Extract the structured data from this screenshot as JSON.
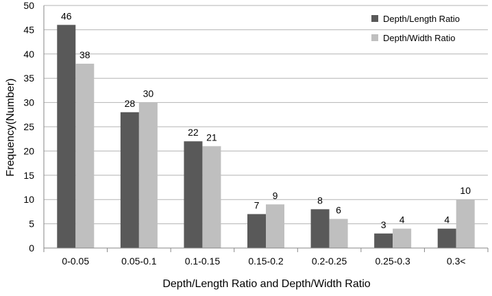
{
  "chart_data": {
    "type": "bar",
    "title": "",
    "xlabel": "Depth/Length Ratio and Depth/Width Ratio",
    "ylabel": "Frequency(Number)",
    "ylim": [
      0,
      50
    ],
    "ytick_step": 5,
    "grid": true,
    "legend_position": "top-right",
    "categories": [
      "0-0.05",
      "0.05-0.1",
      "0.1-0.15",
      "0.15-0.2",
      "0.2-0.25",
      "0.25-0.3",
      "0.3<"
    ],
    "series": [
      {
        "name": "Depth/Length Ratio",
        "color": "#595959",
        "values": [
          46,
          28,
          22,
          7,
          8,
          3,
          4
        ]
      },
      {
        "name": "Depth/Width Ratio",
        "color": "#bfbfbf",
        "values": [
          38,
          30,
          21,
          9,
          6,
          4,
          10
        ]
      }
    ]
  }
}
